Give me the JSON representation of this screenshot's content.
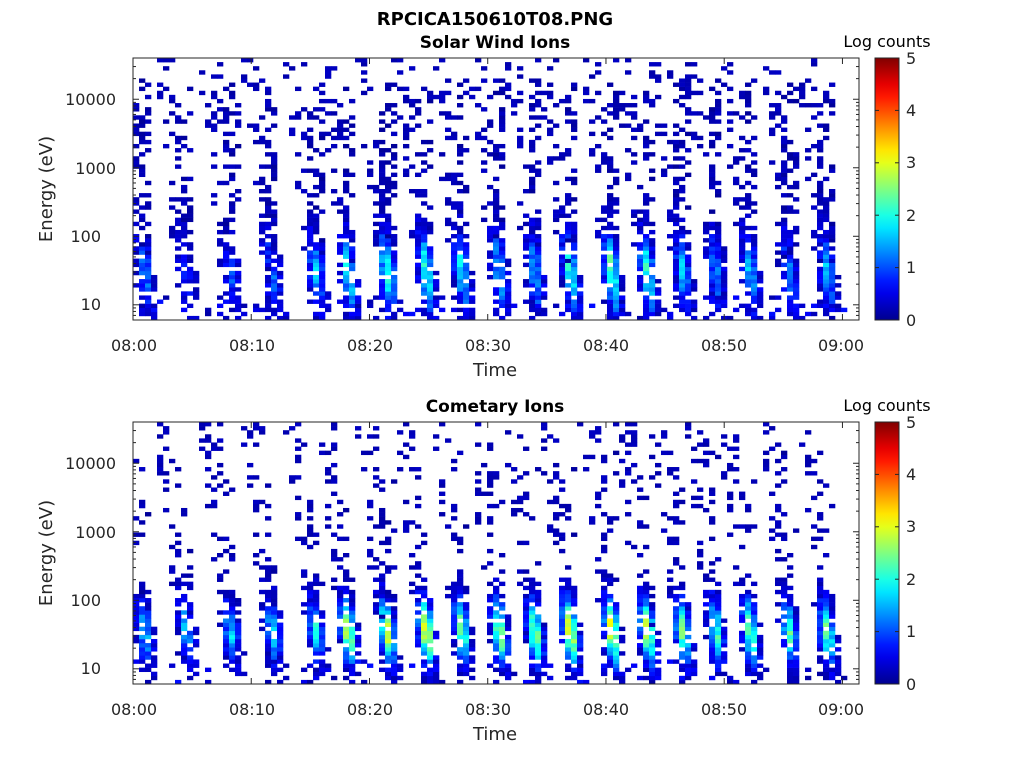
{
  "figure_title": "RPCICA150610T08.PNG",
  "chart_data": [
    {
      "type": "heatmap",
      "title": "Solar Wind Ions",
      "xlabel": "Time",
      "ylabel": "Energy (eV)",
      "y_scale": "log",
      "ylim": [
        6,
        40000
      ],
      "xlim": [
        "08:00",
        "09:01"
      ],
      "x_ticks": [
        "08:00",
        "08:10",
        "08:20",
        "08:30",
        "08:40",
        "08:50",
        "09:00"
      ],
      "y_ticks": [
        "10",
        "100",
        "1000",
        "10000"
      ],
      "y_tick_values": [
        10,
        100,
        1000,
        10000
      ],
      "colorbar": {
        "label": "Log counts",
        "ticks": [
          "0",
          "1",
          "2",
          "3",
          "4",
          "5"
        ],
        "range": [
          0,
          5
        ]
      },
      "colormap": "jet",
      "burst_times_min": [
        1.0,
        4.5,
        8.3,
        11.8,
        15.5,
        18.2,
        21.5,
        24.8,
        27.8,
        31.0,
        34.0,
        37.0,
        40.5,
        43.5,
        46.5,
        49.3,
        52.2,
        55.5,
        58.7
      ],
      "burst_peak_log_counts": [
        1.4,
        0.8,
        1.0,
        1.2,
        1.6,
        2.1,
        2.3,
        2.3,
        1.9,
        1.7,
        1.6,
        2.3,
        2.6,
        2.3,
        1.6,
        1.4,
        1.8,
        1.4,
        1.6
      ],
      "burst_center_energy_ev": 30,
      "background_upper_energy_ev": 20000
    },
    {
      "type": "heatmap",
      "title": "Cometary Ions",
      "xlabel": "Time",
      "ylabel": "Energy (eV)",
      "y_scale": "log",
      "ylim": [
        6,
        40000
      ],
      "xlim": [
        "08:00",
        "09:01"
      ],
      "x_ticks": [
        "08:00",
        "08:10",
        "08:20",
        "08:30",
        "08:40",
        "08:50",
        "09:00"
      ],
      "y_ticks": [
        "10",
        "100",
        "1000",
        "10000"
      ],
      "y_tick_values": [
        10,
        100,
        1000,
        10000
      ],
      "colorbar": {
        "label": "Log counts",
        "ticks": [
          "0",
          "1",
          "2",
          "3",
          "4",
          "5"
        ],
        "range": [
          0,
          5
        ]
      },
      "colormap": "jet",
      "burst_times_min": [
        1.0,
        4.5,
        8.3,
        11.8,
        15.5,
        18.2,
        21.5,
        24.8,
        27.8,
        31.0,
        34.0,
        37.0,
        40.5,
        43.5,
        46.5,
        49.3,
        52.2,
        55.5,
        58.7
      ],
      "burst_peak_log_counts": [
        1.8,
        1.7,
        1.8,
        1.8,
        2.1,
        3.3,
        3.2,
        3.5,
        2.8,
        3.0,
        2.9,
        3.6,
        3.5,
        3.4,
        2.7,
        2.5,
        2.8,
        2.4,
        2.6
      ],
      "burst_center_energy_ev": 35,
      "background_upper_energy_ev": 15000
    }
  ]
}
